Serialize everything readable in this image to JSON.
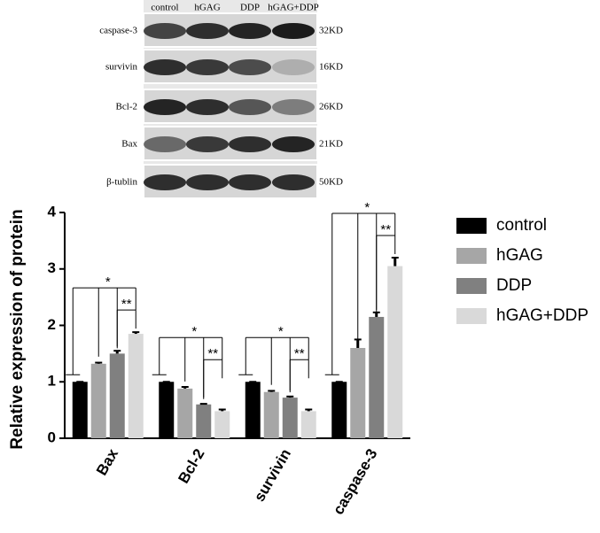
{
  "blot": {
    "lanes": [
      "control",
      "hGAG",
      "DDP",
      "hGAG+DDP"
    ],
    "rows": [
      {
        "label": "caspase-3",
        "size": "32KD"
      },
      {
        "label": "survivin",
        "size": "16KD"
      },
      {
        "label": "Bcl-2",
        "size": "26KD"
      },
      {
        "label": "Bax",
        "size": "21KD"
      },
      {
        "label": "β-tublin",
        "size": "50KD"
      }
    ]
  },
  "chart_data": {
    "type": "bar",
    "y_label": "Relative expression of protein",
    "categories": [
      "Bax",
      "Bcl-2",
      "survivin",
      "caspase-3"
    ],
    "series": [
      {
        "name": "control",
        "color": "#000000",
        "values": [
          1.0,
          1.0,
          1.0,
          1.0
        ],
        "errors": [
          0,
          0,
          0,
          0
        ]
      },
      {
        "name": "hGAG",
        "color": "#a6a6a6",
        "values": [
          1.32,
          0.88,
          0.82,
          1.6
        ],
        "errors": [
          0.02,
          0.03,
          0.02,
          0.15
        ]
      },
      {
        "name": "DDP",
        "color": "#808080",
        "values": [
          1.5,
          0.6,
          0.72,
          2.15
        ],
        "errors": [
          0.05,
          0.01,
          0.02,
          0.08
        ]
      },
      {
        "name": "hGAG+DDP",
        "color": "#d9d9d9",
        "values": [
          1.85,
          0.48,
          0.48,
          3.05
        ],
        "errors": [
          0.03,
          0.03,
          0.03,
          0.15
        ]
      }
    ],
    "significance": [
      [
        "*",
        "**"
      ],
      [
        "*",
        "**"
      ],
      [
        "*",
        "**"
      ],
      [
        "*",
        "**"
      ]
    ],
    "ylim": [
      0,
      4
    ],
    "yticks": [
      0,
      1,
      2,
      3,
      4
    ]
  }
}
